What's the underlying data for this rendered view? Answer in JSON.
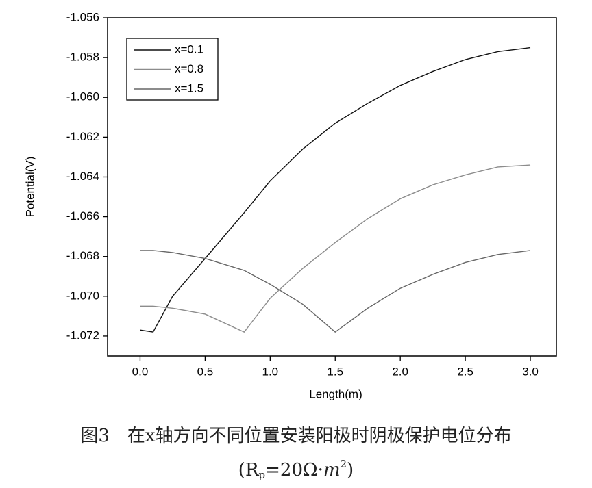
{
  "chart_data": {
    "type": "line",
    "xlabel": "Length(m)",
    "ylabel": "Potential(V)",
    "x": [
      0,
      0.1,
      0.25,
      0.5,
      0.8,
      1.0,
      1.25,
      1.5,
      1.75,
      2.0,
      2.25,
      2.5,
      2.75,
      3.0
    ],
    "series": [
      {
        "name": "x=0.1",
        "color": "#111111",
        "values": [
          -1.0717,
          -1.0718,
          -1.07,
          -1.0681,
          -1.0658,
          -1.0642,
          -1.0626,
          -1.0613,
          -1.0603,
          -1.0594,
          -1.0587,
          -1.0581,
          -1.0577,
          -1.0575
        ]
      },
      {
        "name": "x=0.8",
        "color": "#8c8c8c",
        "values": [
          -1.0705,
          -1.0705,
          -1.0706,
          -1.0709,
          -1.0718,
          -1.0701,
          -1.0686,
          -1.0673,
          -1.0661,
          -1.0651,
          -1.0644,
          -1.0639,
          -1.0635,
          -1.0634
        ]
      },
      {
        "name": "x=1.5",
        "color": "#666666",
        "values": [
          -1.0677,
          -1.0677,
          -1.0678,
          -1.0681,
          -1.0687,
          -1.0694,
          -1.0704,
          -1.0718,
          -1.0706,
          -1.0696,
          -1.0689,
          -1.0683,
          -1.0679,
          -1.0677
        ]
      }
    ],
    "xlim": [
      -0.25,
      3.2
    ],
    "xticks": [
      {
        "value": 0,
        "label": "0.0"
      },
      0.5,
      {
        "value": 1,
        "label": "1.0"
      },
      1.5,
      {
        "value": 2,
        "label": "2.0"
      },
      2.5,
      {
        "value": 3,
        "label": "3.0"
      }
    ],
    "ylim": [
      -1.073,
      -1.056
    ],
    "yticks": [
      -1.072,
      {
        "value": -1.07,
        "label": "-1.070"
      },
      -1.068,
      -1.066,
      -1.064,
      -1.062,
      {
        "value": -1.06,
        "label": "-1.060"
      },
      -1.058,
      -1.056
    ],
    "legend": "top-left",
    "grid": false
  },
  "caption": {
    "line1": "图3　在x轴方向不同位置安装阳极时阴极保护电位分布",
    "line2": [
      "(R",
      "p",
      "=20Ω·",
      "m",
      "2",
      ")"
    ]
  }
}
